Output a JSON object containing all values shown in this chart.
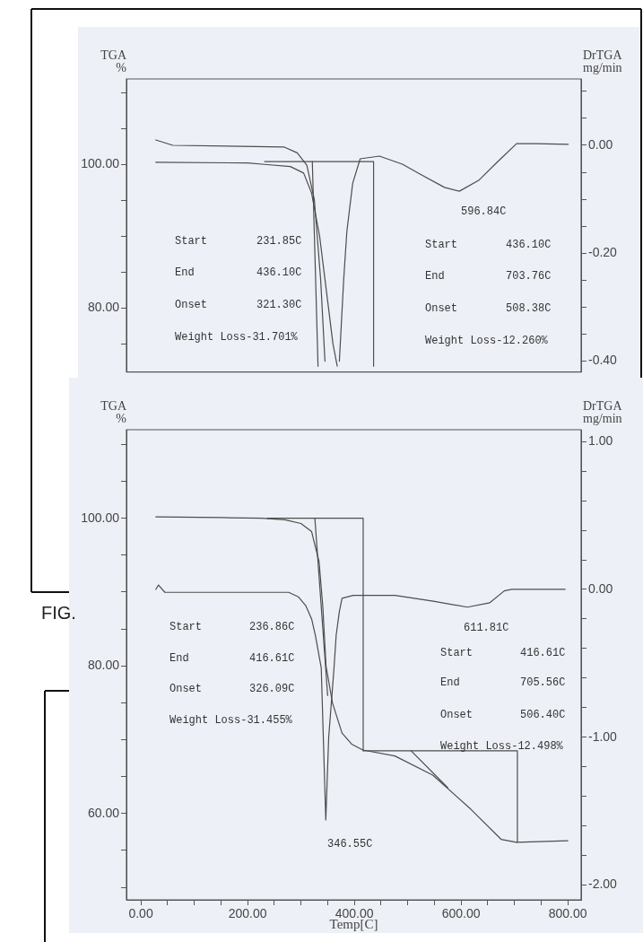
{
  "chart_data": [
    {
      "type": "line",
      "ylabel": "TGA\n%",
      "y2label": "DrTGA\nmg/min",
      "xlim": [
        -27,
        825
      ],
      "tick_labels": "y",
      "grid": false,
      "legend": false,
      "ylim": [
        71.1,
        111.9
      ],
      "yticks": [
        {
          "value": 110,
          "label": null
        },
        {
          "value": 105,
          "label": null
        },
        {
          "value": 100,
          "label": "100.00"
        },
        {
          "value": 95,
          "label": null
        },
        {
          "value": 90,
          "label": null
        },
        {
          "value": 85,
          "label": null
        },
        {
          "value": 80,
          "label": "80.00"
        },
        {
          "value": 75,
          "label": null
        }
      ],
      "y2lim": [
        -0.42,
        0.123
      ],
      "y2ticks": [
        {
          "value": 0.1,
          "label": null
        },
        {
          "value": 0.05,
          "label": null
        },
        {
          "value": 0,
          "label": "0.00"
        },
        {
          "value": -0.05,
          "label": null
        },
        {
          "value": -0.1,
          "label": null
        },
        {
          "value": -0.15,
          "label": null
        },
        {
          "value": -0.2,
          "label": "-0.20"
        },
        {
          "value": -0.25,
          "label": null
        },
        {
          "value": -0.3,
          "label": null
        },
        {
          "value": -0.35,
          "label": null
        },
        {
          "value": -0.4,
          "label": "-0.40"
        }
      ],
      "series": [
        {
          "color": "#4d4d4d",
          "x": [
            28,
            200,
            232,
            280,
            305,
            320,
            335,
            350,
            360,
            368
          ],
          "values": [
            100.3,
            100.2,
            100,
            99.7,
            98.8,
            96,
            90,
            81,
            75,
            71.9
          ]
        },
        {
          "color": "#4d4d4d",
          "axis": "y2",
          "x": [
            28,
            60,
            268,
            293,
            311,
            325,
            337,
            345,
            358,
            372,
            380,
            386,
            397,
            411,
            447,
            490,
            526,
            569,
            596.84,
            633,
            669,
            704,
            740,
            801
          ],
          "values": [
            0.01,
            0,
            -0.003,
            -0.014,
            -0.037,
            -0.1,
            -0.25,
            -0.4,
            null,
            -0.4,
            -0.25,
            -0.16,
            -0.07,
            -0.025,
            -0.02,
            -0.035,
            -0.055,
            -0.078,
            -0.085,
            -0.065,
            -0.03,
            0.003,
            0.003,
            0.002
          ]
        },
        {
          "color": "#4d4d4d",
          "x": [
            231.85,
            436.1,
            436.1
          ],
          "values": [
            100.4,
            100.4,
            71.9
          ]
        },
        {
          "color": "#4d4d4d",
          "x": [
            321.3,
            332
          ],
          "values": [
            100.4,
            71.9
          ]
        }
      ],
      "annotations": [
        "Start  231.85C",
        "End  436.10C",
        "Onset  321.30C",
        "Weight Loss-31.701%",
        "596.84C",
        "Start  436.10C",
        "End  703.76C",
        "Onset  508.38C",
        "Weight Loss-12.260%",
        "FIG."
      ]
    },
    {
      "type": "line",
      "ylabel": "TGA\n%",
      "y2label": "DrTGA\nmg/min",
      "xlabel": "Temp[C]",
      "xlim": [
        -27,
        825
      ],
      "grid": false,
      "legend": false,
      "xticks": [
        {
          "value": 0,
          "label": "0.00"
        },
        {
          "value": 50,
          "label": null
        },
        {
          "value": 100,
          "label": null
        },
        {
          "value": 150,
          "label": null
        },
        {
          "value": 200,
          "label": "200.00"
        },
        {
          "value": 250,
          "label": null
        },
        {
          "value": 300,
          "label": null
        },
        {
          "value": 350,
          "label": null
        },
        {
          "value": 400,
          "label": "400.00"
        },
        {
          "value": 450,
          "label": null
        },
        {
          "value": 500,
          "label": null
        },
        {
          "value": 550,
          "label": null
        },
        {
          "value": 600,
          "label": "600.00"
        },
        {
          "value": 650,
          "label": null
        },
        {
          "value": 700,
          "label": null
        },
        {
          "value": 750,
          "label": null
        },
        {
          "value": 800,
          "label": "800.00"
        }
      ],
      "ylim": [
        48.3,
        112
      ],
      "yticks": [
        {
          "value": 110,
          "label": null
        },
        {
          "value": 105,
          "label": null
        },
        {
          "value": 100,
          "label": "100.00"
        },
        {
          "value": 95,
          "label": null
        },
        {
          "value": 90,
          "label": null
        },
        {
          "value": 85,
          "label": null
        },
        {
          "value": 80,
          "label": "80.00"
        },
        {
          "value": 75,
          "label": null
        },
        {
          "value": 70,
          "label": null
        },
        {
          "value": 65,
          "label": null
        },
        {
          "value": 60,
          "label": "60.00"
        },
        {
          "value": 55,
          "label": null
        },
        {
          "value": 50,
          "label": null
        }
      ],
      "y2lim": [
        -2.1,
        1.08
      ],
      "y2ticks": [
        {
          "value": 1,
          "label": "1.00"
        },
        {
          "value": 0.8,
          "label": null
        },
        {
          "value": 0.6,
          "label": null
        },
        {
          "value": 0.4,
          "label": null
        },
        {
          "value": 0.2,
          "label": null
        },
        {
          "value": 0,
          "label": "0.00"
        },
        {
          "value": -0.2,
          "label": null
        },
        {
          "value": -0.4,
          "label": null
        },
        {
          "value": -0.6,
          "label": null
        },
        {
          "value": -0.8,
          "label": null
        },
        {
          "value": -1,
          "label": "-1.00"
        },
        {
          "value": -1.2,
          "label": null
        },
        {
          "value": -1.4,
          "label": null
        },
        {
          "value": -1.6,
          "label": null
        },
        {
          "value": -1.8,
          "label": null
        },
        {
          "value": -2,
          "label": "-2.00"
        }
      ],
      "series": [
        {
          "color": "#4d4d4d",
          "x": [
            28,
            150,
            227,
            270,
            300,
            320,
            334,
            341,
            347,
            359,
            377,
            395,
            416,
            476,
            547,
            618,
            675,
            704,
            800
          ],
          "values": [
            100.2,
            100.1,
            100,
            99.8,
            99.3,
            98.2,
            94.1,
            88,
            80,
            75,
            70.9,
            69.4,
            68.6,
            67.8,
            65.2,
            60.6,
            56.5,
            56.1,
            56.3
          ]
        },
        {
          "color": "#4d4d4d",
          "axis": "y2",
          "x": [
            28,
            33,
            45,
            60,
            150,
            250,
            277,
            295,
            309,
            320,
            327,
            338,
            346.55,
            352,
            362,
            366,
            372,
            377,
            398,
            446,
            476,
            548,
            611.81,
            654,
            681,
            695,
            750,
            795
          ],
          "values": [
            0,
            0.03,
            -0.02,
            -0.02,
            -0.02,
            -0.02,
            -0.02,
            -0.05,
            -0.11,
            -0.2,
            -0.31,
            -0.53,
            -1.56,
            -1,
            -0.53,
            -0.31,
            -0.15,
            -0.06,
            -0.04,
            -0.04,
            -0.04,
            -0.08,
            -0.12,
            -0.09,
            -0.01,
            0,
            0,
            0
          ]
        },
        {
          "color": "#4d4d4d",
          "x": [
            236.86,
            416.61,
            416.61
          ],
          "values": [
            100,
            100,
            68.5
          ]
        },
        {
          "color": "#4d4d4d",
          "x": [
            326.09,
            350
          ],
          "values": [
            100,
            76
          ]
        },
        {
          "color": "#4d4d4d",
          "x": [
            416.61,
            705.56,
            705.56
          ],
          "values": [
            68.5,
            68.5,
            56.1
          ]
        },
        {
          "color": "#4d4d4d",
          "x": [
            506.4,
            575
          ],
          "values": [
            68.5,
            63.5
          ]
        }
      ],
      "annotations": [
        "Start  236.86C",
        "End  416.61C",
        "Onset  326.09C",
        "Weight Loss-31.455%",
        "611.81C",
        "346.55C",
        "Start  416.61C",
        "End  705.56C",
        "Onset  506.40C",
        "Weight Loss-12.498%"
      ]
    }
  ]
}
